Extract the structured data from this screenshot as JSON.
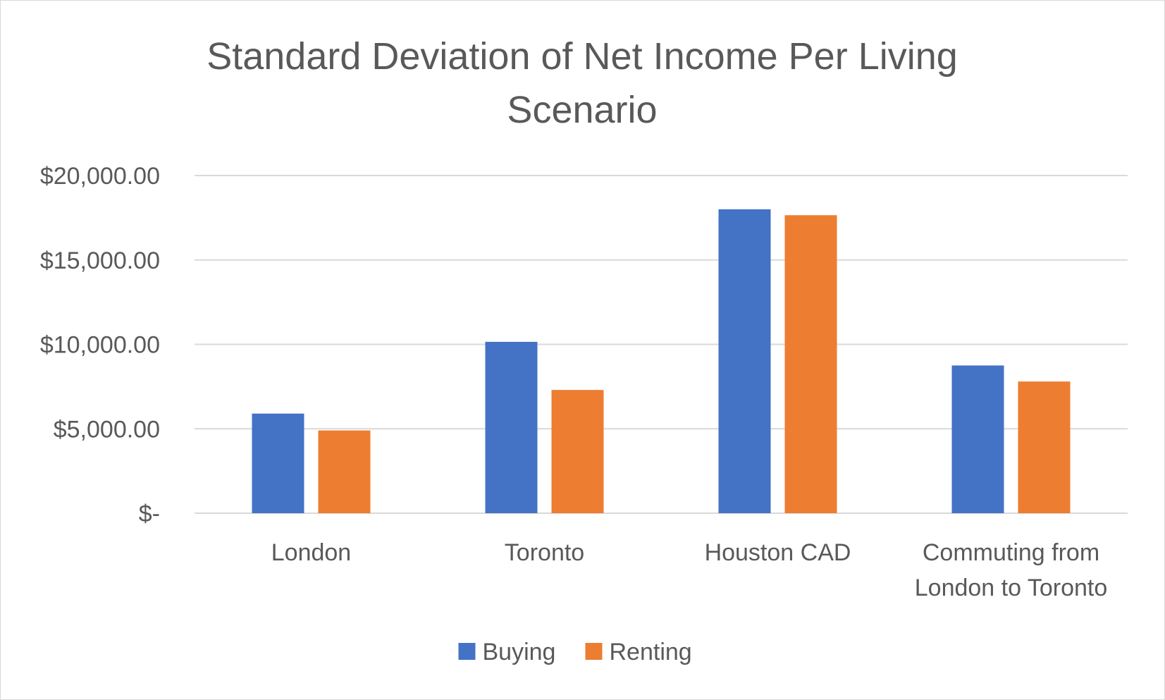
{
  "chart_data": {
    "type": "bar",
    "title_lines": [
      "Standard Deviation of Net Income Per Living",
      "Scenario"
    ],
    "categories": [
      [
        "London"
      ],
      [
        "Toronto"
      ],
      [
        "Houston CAD"
      ],
      [
        "Commuting from",
        "London to Toronto"
      ]
    ],
    "series": [
      {
        "name": "Buying",
        "color": "#4472c4",
        "values": [
          5900,
          10150,
          18000,
          8750
        ]
      },
      {
        "name": "Renting",
        "color": "#ed7d31",
        "values": [
          4900,
          7300,
          17650,
          7800
        ]
      }
    ],
    "ylim": [
      0,
      20000
    ],
    "yticks": [
      0,
      5000,
      10000,
      15000,
      20000
    ],
    "ytick_labels": [
      "$-",
      "$5,000.00",
      "$10,000.00",
      "$15,000.00",
      "$20,000.00"
    ],
    "grid": true,
    "legend_position": "bottom"
  }
}
